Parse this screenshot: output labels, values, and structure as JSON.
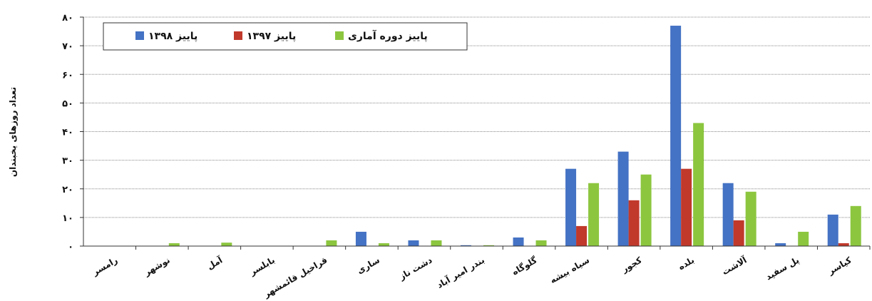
{
  "chart_data": {
    "type": "bar",
    "title": "",
    "xlabel": "",
    "ylabel": "تعداد روزهای یخبندان",
    "ylim": [
      0,
      80
    ],
    "yticks": [
      "۰",
      "۱۰",
      "۲۰",
      "۳۰",
      "۴۰",
      "۵۰",
      "۶۰",
      "۷۰",
      "۸۰"
    ],
    "ytick_values": [
      0,
      10,
      20,
      30,
      40,
      50,
      60,
      70,
      80
    ],
    "grid": true,
    "legend_position": "top-left",
    "categories": [
      "رامسر",
      "نوشهر",
      "آمل",
      "بابلسر",
      "قراخیل قائمشهر",
      "ساری",
      "دشت ناز",
      "بندر امیر آباد",
      "گلوگاه",
      "سیاه بیشه",
      "کجور",
      "بلده",
      "آلاشت",
      "پل سفید",
      "کیاسر"
    ],
    "series": [
      {
        "name": "پاییز ۱۳۹۸",
        "color": "#4472c4",
        "values": [
          0,
          0,
          0,
          0,
          0,
          5,
          2,
          0.3,
          3,
          27,
          33,
          77,
          22,
          1,
          11
        ]
      },
      {
        "name": "پاییز ۱۳۹۷",
        "color": "#c0392b",
        "values": [
          0,
          0,
          0,
          0,
          0,
          0,
          0,
          0,
          0,
          7,
          16,
          27,
          9,
          0,
          1
        ]
      },
      {
        "name": "پاییز دوره آماری",
        "color": "#8cc63f",
        "values": [
          0,
          1,
          1.2,
          0,
          2,
          1,
          2,
          0.3,
          2,
          22,
          25,
          43,
          19,
          5,
          14
        ]
      }
    ]
  }
}
